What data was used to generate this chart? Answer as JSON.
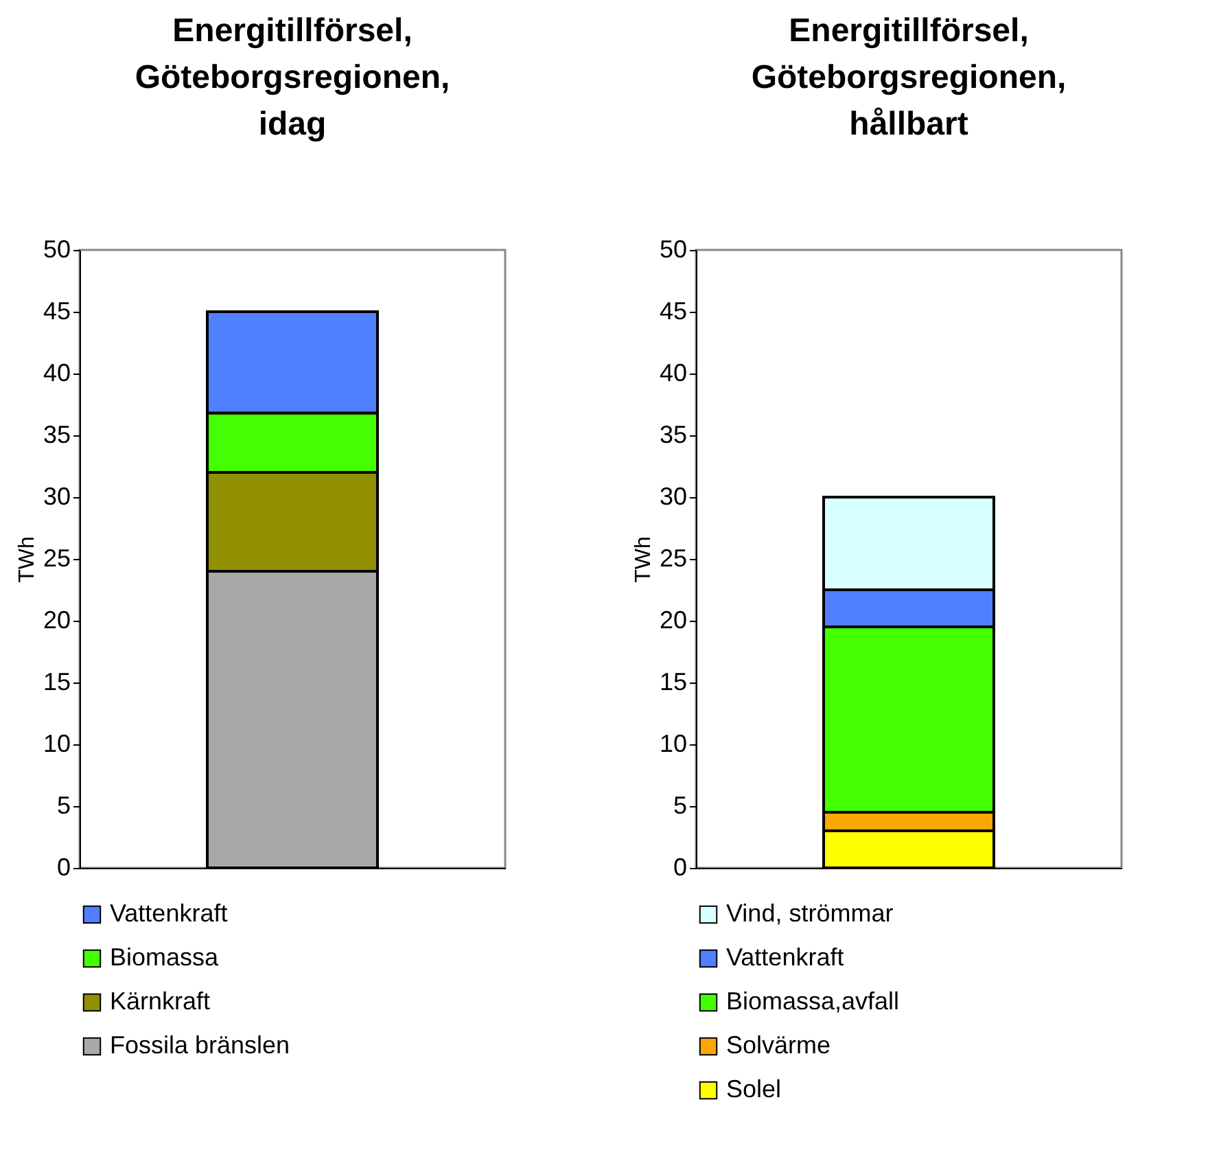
{
  "chart_data": [
    {
      "type": "bar",
      "title": "Energitillförsel, Göteborgsregionen, idag",
      "ylabel": "TWh",
      "categories": [
        null
      ],
      "stacked": true,
      "ylim": [
        0,
        50
      ],
      "yticks": [
        0,
        5,
        10,
        15,
        20,
        25,
        30,
        35,
        40,
        45,
        50
      ],
      "legend": "bottom",
      "tick_labels": "y",
      "series": [
        {
          "name": "Fossila bränslen",
          "color": "#a8a8a8",
          "values": [
            24
          ]
        },
        {
          "name": "Kärnkraft",
          "color": "#909000",
          "values": [
            8
          ]
        },
        {
          "name": "Biomassa",
          "color": "#44ff00",
          "values": [
            4.8
          ]
        },
        {
          "name": "Vattenkraft",
          "color": "#5080ff",
          "values": [
            8.2
          ]
        }
      ]
    },
    {
      "type": "bar",
      "title": "Energitillförsel, Göteborgsregionen, hållbart",
      "ylabel": "TWh",
      "categories": [
        null
      ],
      "stacked": true,
      "ylim": [
        0,
        50
      ],
      "yticks": [
        0,
        5,
        10,
        15,
        20,
        25,
        30,
        35,
        40,
        45,
        50
      ],
      "legend": "bottom",
      "tick_labels": "y",
      "series": [
        {
          "name": "Solel",
          "color": "#ffff00",
          "values": [
            3
          ]
        },
        {
          "name": "Solvärme",
          "color": "#f8a800",
          "values": [
            1.5
          ]
        },
        {
          "name": "Biomassa,avfall",
          "color": "#44ff00",
          "values": [
            15
          ]
        },
        {
          "name": "Vattenkraft",
          "color": "#5080ff",
          "values": [
            3
          ]
        },
        {
          "name": "Vind, strömmar",
          "color": "#d8ffff",
          "values": [
            7.5
          ]
        }
      ]
    }
  ]
}
